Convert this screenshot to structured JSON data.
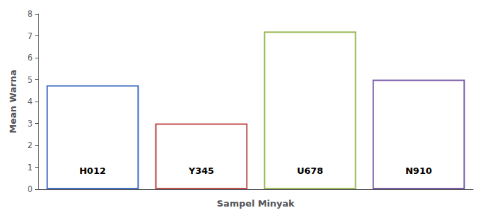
{
  "chart_data": {
    "type": "bar",
    "xlabel": "Sampel Minyak",
    "ylabel": "Mean Warna",
    "categories": [
      "H012",
      "Y345",
      "U678",
      "N910"
    ],
    "values": [
      4.75,
      3.0,
      7.2,
      5.0
    ],
    "colors": [
      "#4472C4",
      "#C0504D",
      "#9BBB59",
      "#7B5EA7"
    ],
    "ylim": [
      0,
      8
    ],
    "yticks": [
      0,
      1,
      2,
      3,
      4,
      5,
      6,
      7,
      8
    ],
    "grid": false,
    "tick_labels": "y"
  }
}
